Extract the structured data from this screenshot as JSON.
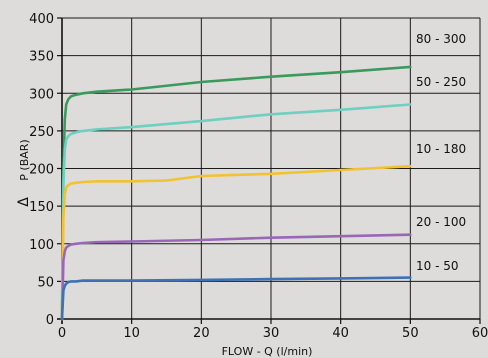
{
  "chart_data": {
    "type": "line",
    "title": "",
    "xlabel": "FLOW - Q (l/min)",
    "ylabel": "P (BAR)",
    "ylabel_symbol": "Δ",
    "xlim": [
      0,
      60
    ],
    "ylim": [
      0,
      400
    ],
    "xticks": [
      0,
      10,
      20,
      30,
      40,
      50,
      60
    ],
    "yticks": [
      0,
      50,
      100,
      150,
      200,
      250,
      300,
      350,
      400
    ],
    "grid": true,
    "series": [
      {
        "name": "80 - 300",
        "color": "#3a9a5b",
        "x": [
          0,
          0.2,
          0.4,
          0.6,
          0.9,
          1.3,
          2,
          3,
          5,
          10,
          20,
          30,
          40,
          50
        ],
        "y": [
          0,
          200,
          265,
          285,
          292,
          296,
          298,
          300,
          302,
          305,
          315,
          322,
          328,
          335
        ]
      },
      {
        "name": "50 - 250",
        "color": "#6fcfc0",
        "x": [
          0,
          0.2,
          0.4,
          0.6,
          0.9,
          1.3,
          2,
          3,
          5,
          10,
          20,
          30,
          40,
          50
        ],
        "y": [
          0,
          180,
          225,
          238,
          243,
          246,
          248,
          250,
          252,
          255,
          263,
          272,
          278,
          285
        ]
      },
      {
        "name": "10 - 180",
        "color": "#f2c230",
        "x": [
          0,
          0.2,
          0.4,
          0.6,
          0.9,
          1.3,
          2,
          3,
          5,
          10,
          15,
          20,
          30,
          40,
          50
        ],
        "y": [
          0,
          135,
          165,
          175,
          178,
          180,
          181,
          182,
          183,
          183,
          184,
          190,
          193,
          198,
          203
        ]
      },
      {
        "name": "20 - 100",
        "color": "#9a67b8",
        "x": [
          0,
          0.2,
          0.4,
          0.6,
          0.9,
          1.3,
          2,
          3,
          5,
          10,
          20,
          30,
          40,
          50
        ],
        "y": [
          0,
          78,
          90,
          95,
          97,
          99,
          100,
          101,
          102,
          103,
          105,
          108,
          110,
          112
        ]
      },
      {
        "name": "10 - 50",
        "color": "#3f72b5",
        "x": [
          0,
          0.2,
          0.4,
          0.6,
          0.9,
          1.3,
          2,
          3,
          5,
          10,
          20,
          30,
          40,
          50
        ],
        "y": [
          0,
          38,
          44,
          47,
          49,
          50,
          50,
          51,
          51,
          51,
          52,
          53,
          54,
          55
        ]
      }
    ]
  }
}
